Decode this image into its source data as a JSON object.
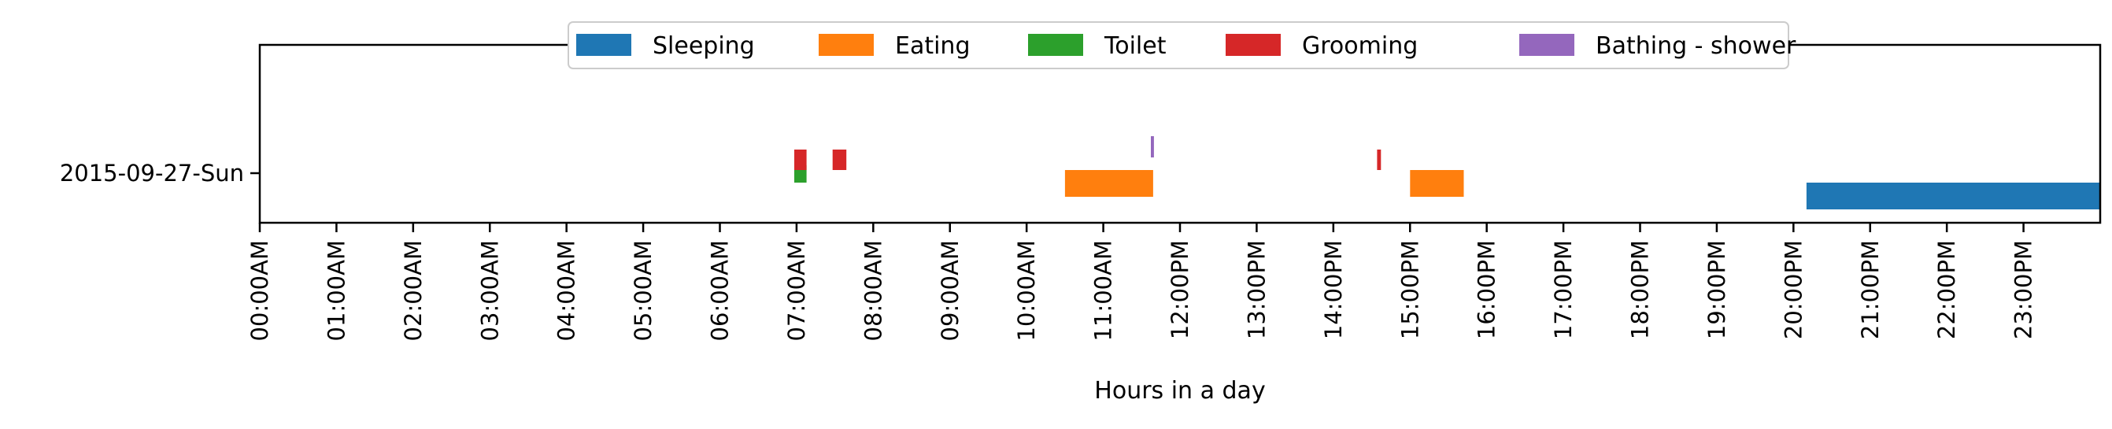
{
  "chart_data": {
    "type": "bar",
    "subtype": "broken-barh timeline",
    "title": "",
    "xlabel": "Hours in a day",
    "ylabel": "",
    "x_unit": "hours",
    "xlim": [
      0,
      24
    ],
    "x_tick_values": [
      0,
      1,
      2,
      3,
      4,
      5,
      6,
      7,
      8,
      9,
      10,
      11,
      12,
      13,
      14,
      15,
      16,
      17,
      18,
      19,
      20,
      21,
      22,
      23
    ],
    "x_tick_labels": [
      "00:00AM",
      "01:00AM",
      "02:00AM",
      "03:00AM",
      "04:00AM",
      "05:00AM",
      "06:00AM",
      "07:00AM",
      "08:00AM",
      "09:00AM",
      "10:00AM",
      "11:00AM",
      "12:00PM",
      "13:00PM",
      "14:00PM",
      "15:00PM",
      "16:00PM",
      "17:00PM",
      "18:00PM",
      "19:00PM",
      "20:00PM",
      "21:00PM",
      "22:00PM",
      "23:00PM"
    ],
    "y_categories": [
      "2015-09-27-Sun"
    ],
    "grid": false,
    "legend_position": "top-center",
    "series": [
      {
        "name": "Sleeping",
        "color": "#1f77b4",
        "intervals": [
          [
            20.17,
            24.0
          ]
        ]
      },
      {
        "name": "Eating",
        "color": "#ff7f0e",
        "intervals": [
          [
            10.5,
            11.65
          ],
          [
            15.0,
            15.7
          ]
        ]
      },
      {
        "name": "Toilet",
        "color": "#2ca02c",
        "intervals": [
          [
            6.97,
            7.13
          ]
        ]
      },
      {
        "name": "Grooming",
        "color": "#d62728",
        "intervals": [
          [
            6.97,
            7.13
          ],
          [
            7.47,
            7.65
          ],
          [
            14.57,
            14.62
          ]
        ]
      },
      {
        "name": "Bathing - shower",
        "color": "#9467bd",
        "intervals": [
          [
            11.62,
            11.66
          ]
        ]
      }
    ]
  }
}
